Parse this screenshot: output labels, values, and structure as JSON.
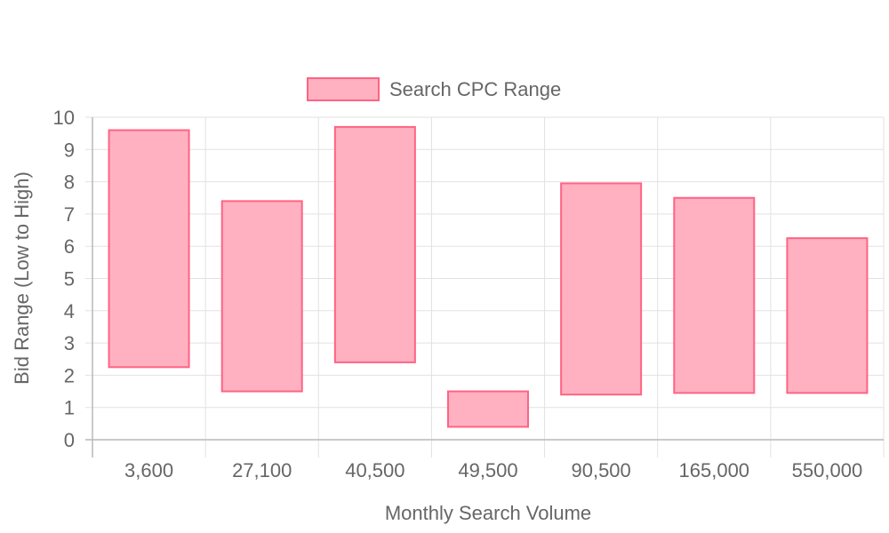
{
  "chart_data": {
    "type": "bar",
    "subtype": "floating-range",
    "categories": [
      "3,600",
      "27,100",
      "40,500",
      "49,500",
      "90,500",
      "165,000",
      "550,000"
    ],
    "series": [
      {
        "name": "Search CPC Range",
        "ranges": [
          [
            2.25,
            9.6
          ],
          [
            1.5,
            7.4
          ],
          [
            2.4,
            9.7
          ],
          [
            0.4,
            1.5
          ],
          [
            1.4,
            7.95
          ],
          [
            1.45,
            7.5
          ],
          [
            1.45,
            6.25
          ]
        ],
        "fill_color": "#ffb1c1",
        "border_color": "#ff6384"
      }
    ],
    "xlabel": "Monthly Search Volume",
    "ylabel": "Bid Range (Low to High)",
    "ylim": [
      0,
      10
    ],
    "yticks": [
      "0",
      "1",
      "2",
      "3",
      "4",
      "5",
      "6",
      "7",
      "8",
      "9",
      "10"
    ],
    "grid": true,
    "legend_position": "top"
  }
}
